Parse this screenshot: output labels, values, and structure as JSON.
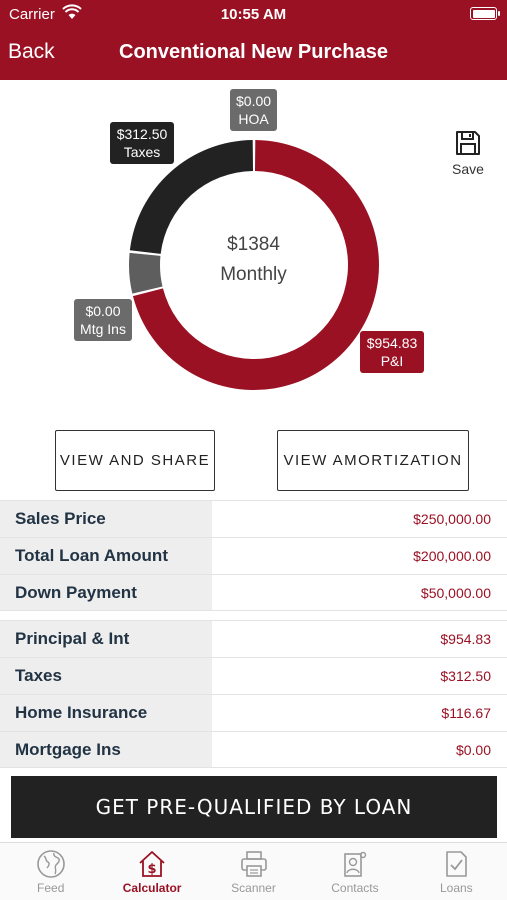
{
  "status_bar": {
    "carrier": "Carrier",
    "time": "10:55 AM"
  },
  "nav": {
    "back_label": "Back",
    "title": "Conventional New Purchase"
  },
  "chart_data": {
    "type": "pie",
    "donut": true,
    "center_value": "$1384",
    "center_label": "Monthly",
    "slices": [
      {
        "label": "P&I",
        "value_label": "$954.83",
        "value": 954.83,
        "color": "#9a1124"
      },
      {
        "label": "Mtg Ins",
        "value_label": "$0.00",
        "value": 0.0,
        "color": "#5e5e5e"
      },
      {
        "label": "Taxes",
        "value_label": "$312.50",
        "value": 312.5,
        "color": "#222222"
      },
      {
        "label": "HOA",
        "value_label": "$0.00",
        "value": 0.0,
        "color": "#6b6b6b"
      }
    ]
  },
  "save": {
    "label": "Save",
    "icon": "floppy-disk-icon"
  },
  "actions": {
    "view_share": "VIEW AND SHARE",
    "view_amortization": "VIEW AMORTIZATION"
  },
  "loan_table": [
    {
      "label": "Sales Price",
      "value": "$250,000.00"
    },
    {
      "label": "Total Loan Amount",
      "value": "$200,000.00"
    },
    {
      "label": "Down Payment",
      "value": "$50,000.00"
    }
  ],
  "payment_table": [
    {
      "label": "Principal & Int",
      "value": "$954.83"
    },
    {
      "label": "Taxes",
      "value": "$312.50"
    },
    {
      "label": "Home Insurance",
      "value": "$116.67"
    },
    {
      "label": "Mortgage Ins",
      "value": "$0.00"
    }
  ],
  "cta": {
    "label": "GET PRE-QUALIFIED BY LOAN"
  },
  "tabs": [
    {
      "label": "Feed",
      "icon": "globe-icon",
      "active": false
    },
    {
      "label": "Calculator",
      "icon": "house-dollar-icon",
      "active": true
    },
    {
      "label": "Scanner",
      "icon": "printer-icon",
      "active": false
    },
    {
      "label": "Contacts",
      "icon": "contacts-icon",
      "active": false
    },
    {
      "label": "Loans",
      "icon": "document-check-icon",
      "active": false
    }
  ],
  "colors": {
    "brand": "#9a1124",
    "dark": "#222222",
    "gray": "#6b6b6b"
  }
}
